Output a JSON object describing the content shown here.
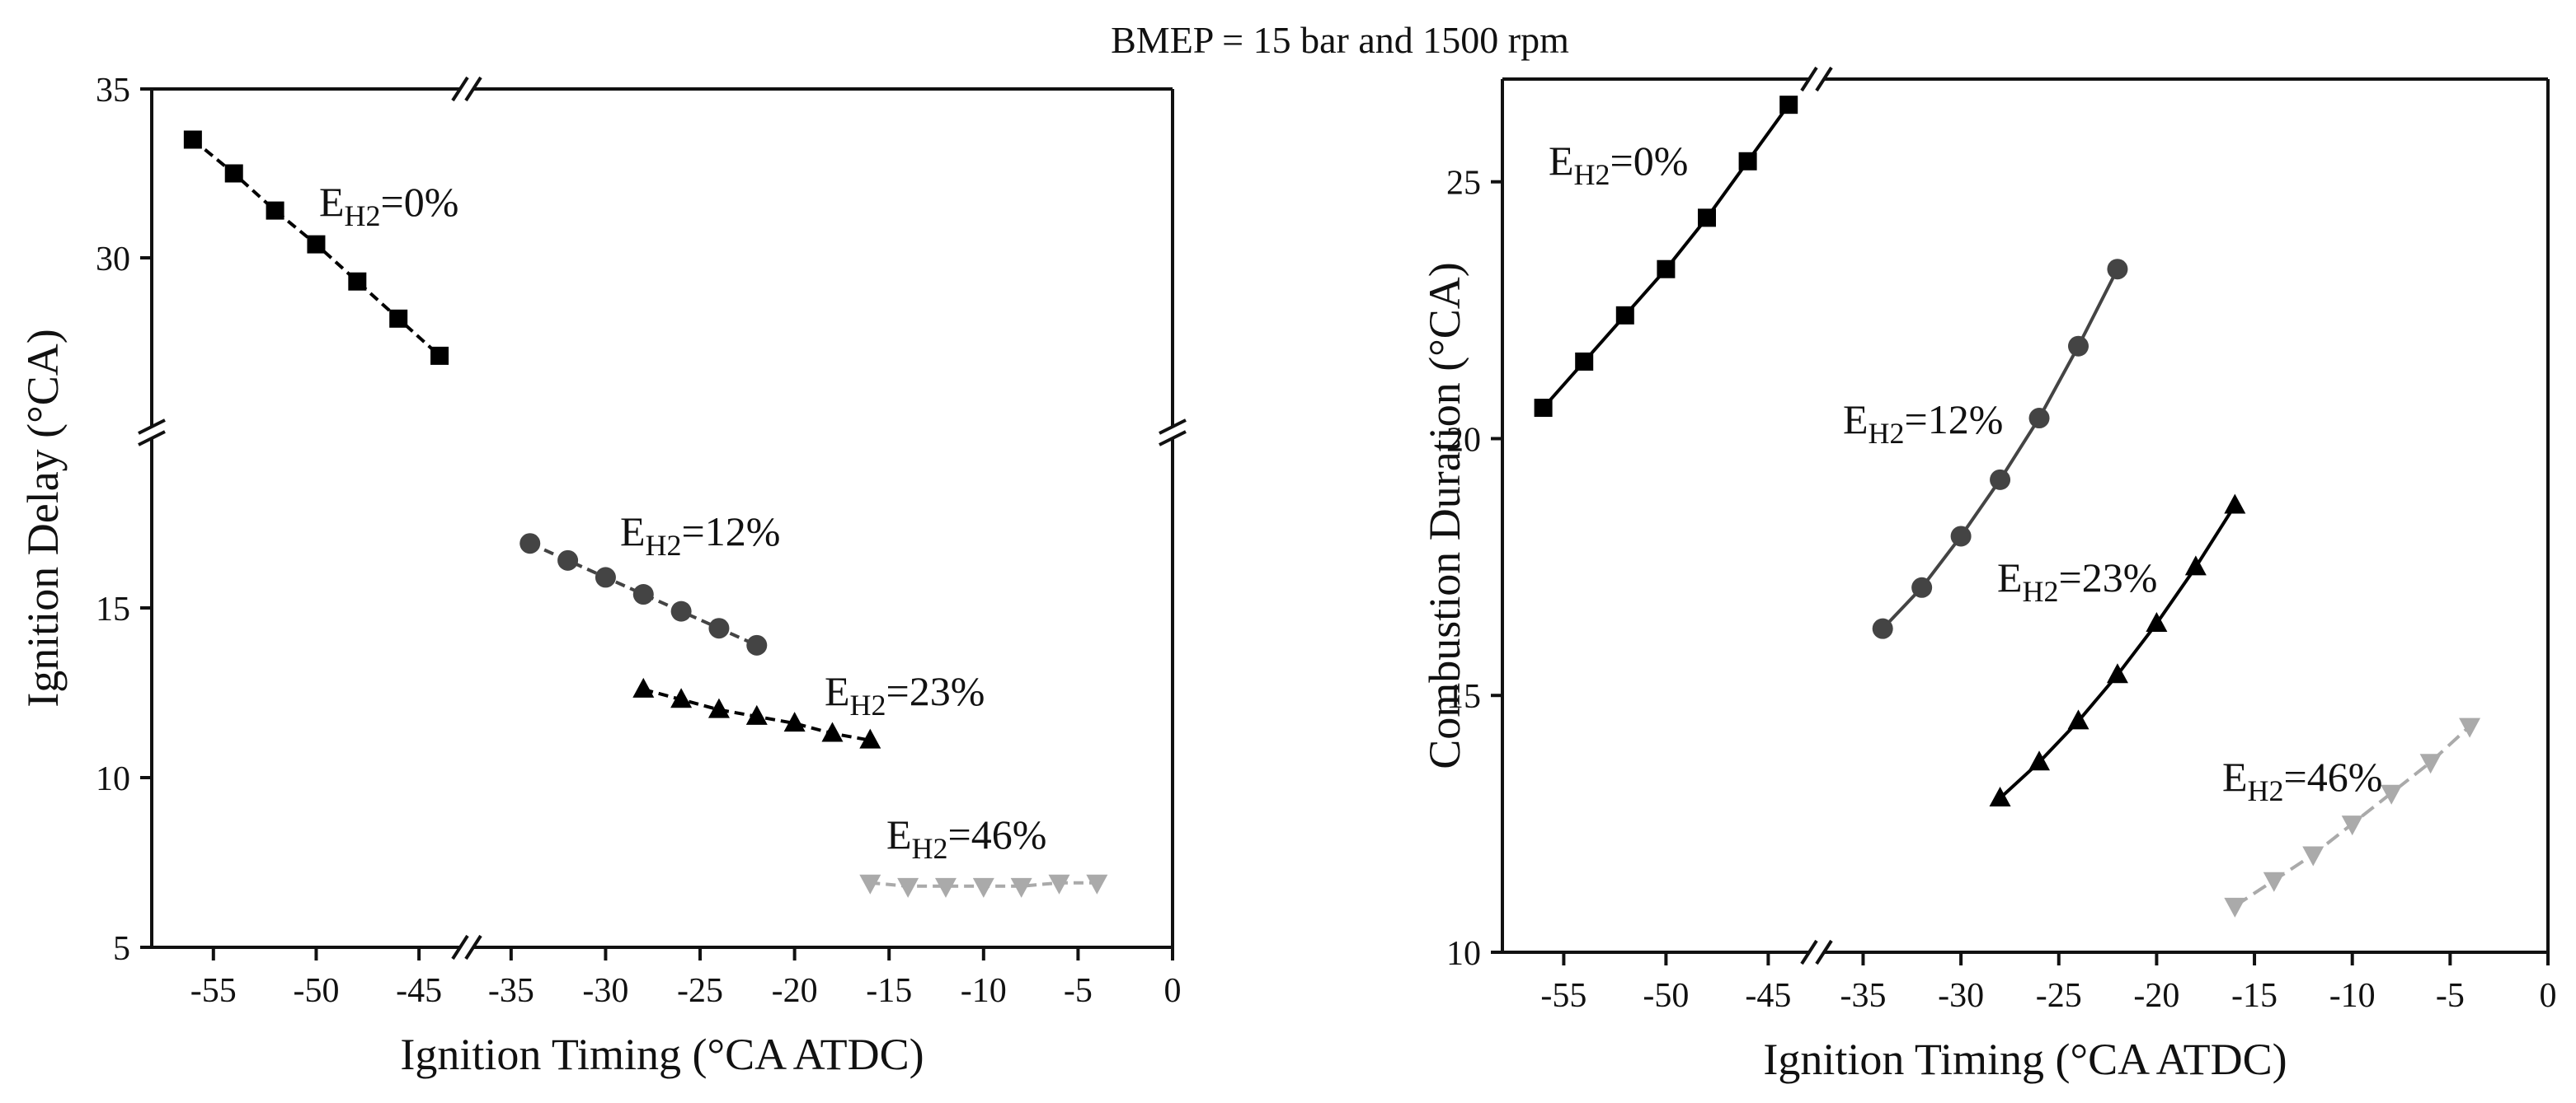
{
  "figure_title": "BMEP = 15 bar and 1500 rpm",
  "chart_data": [
    {
      "type": "line",
      "panel": "left",
      "title": "",
      "xlabel": "Ignition Timing (°CA ATDC)",
      "ylabel": "Ignition Delay (°CA)",
      "xlim": [
        -58,
        0
      ],
      "x_break": [
        -43,
        -37
      ],
      "ylim": [
        5,
        35
      ],
      "y_break": [
        20,
        25
      ],
      "xticks": [
        -55,
        -50,
        -45,
        -35,
        -30,
        -25,
        -20,
        -15,
        -10,
        -5,
        0
      ],
      "xtick_labels": [
        "-55",
        "-50",
        "-45",
        "-35",
        "-30",
        "-25",
        "-20",
        "-15",
        "-10",
        "-5",
        "0"
      ],
      "yticks": [
        5,
        10,
        15,
        30,
        35
      ],
      "ytick_labels": [
        "5",
        "10",
        "15",
        "30",
        "35"
      ],
      "series": [
        {
          "name": "EH2=0%",
          "label_main": "E",
          "label_sub": "H2",
          "label_rest": "=0%",
          "marker": "square",
          "color": "#000000",
          "dash": "12,7",
          "x": [
            -56,
            -54,
            -52,
            -50,
            -48,
            -46,
            -44
          ],
          "y": [
            33.5,
            32.5,
            31.4,
            30.4,
            29.3,
            28.2,
            27.1
          ]
        },
        {
          "name": "EH2=12%",
          "label_main": "E",
          "label_sub": "H2",
          "label_rest": "=12%",
          "marker": "circle",
          "color": "#444444",
          "dash": "12,7",
          "x": [
            -34,
            -32,
            -30,
            -28,
            -26,
            -24,
            -22
          ],
          "y": [
            16.9,
            16.4,
            15.9,
            15.4,
            14.9,
            14.4,
            13.9
          ]
        },
        {
          "name": "EH2=23%",
          "label_main": "E",
          "label_sub": "H2",
          "label_rest": "=23%",
          "marker": "triangle-up",
          "color": "#000000",
          "dash": "12,7",
          "x": [
            -28,
            -26,
            -24,
            -22,
            -20,
            -18,
            -16
          ],
          "y": [
            12.6,
            12.3,
            12.0,
            11.8,
            11.6,
            11.3,
            11.1
          ]
        },
        {
          "name": "EH2=46%",
          "label_main": "E",
          "label_sub": "H2",
          "label_rest": "=46%",
          "marker": "triangle-down",
          "color": "#aaaaaa",
          "dash": "12,7",
          "x": [
            -16,
            -14,
            -12,
            -10,
            -8,
            -6,
            -4
          ],
          "y": [
            6.9,
            6.8,
            6.8,
            6.8,
            6.8,
            6.9,
            6.9
          ]
        }
      ]
    },
    {
      "type": "line",
      "panel": "right",
      "title": "",
      "xlabel": "Ignition Timing (°CA ATDC)",
      "ylabel": "Combustion Duration  (°CA)",
      "xlim": [
        -58,
        0
      ],
      "x_break": [
        -43,
        -37
      ],
      "ylim": [
        10,
        27
      ],
      "xticks": [
        -55,
        -50,
        -45,
        -35,
        -30,
        -25,
        -20,
        -15,
        -10,
        -5,
        0
      ],
      "xtick_labels": [
        "-55",
        "-50",
        "-45",
        "-35",
        "-30",
        "-25",
        "-20",
        "-15",
        "-10",
        "-5",
        "0"
      ],
      "yticks": [
        10,
        15,
        20,
        25
      ],
      "ytick_labels": [
        "10",
        "15",
        "20",
        "25"
      ],
      "series": [
        {
          "name": "EH2=0%",
          "label_main": "E",
          "label_sub": "H2",
          "label_rest": "=0%",
          "marker": "square",
          "color": "#000000",
          "dash": "",
          "x": [
            -56,
            -54,
            -52,
            -50,
            -48,
            -46,
            -44
          ],
          "y": [
            20.6,
            21.5,
            22.4,
            23.3,
            24.3,
            25.4,
            26.5
          ]
        },
        {
          "name": "EH2=12%",
          "label_main": "E",
          "label_sub": "H2",
          "label_rest": "=12%",
          "marker": "circle",
          "color": "#444444",
          "dash": "",
          "x": [
            -34,
            -32,
            -30,
            -28,
            -26,
            -24,
            -22
          ],
          "y": [
            16.3,
            17.1,
            18.1,
            19.2,
            20.4,
            21.8,
            23.3
          ]
        },
        {
          "name": "EH2=23%",
          "label_main": "E",
          "label_sub": "H2",
          "label_rest": "=23%",
          "marker": "triangle-up",
          "color": "#000000",
          "dash": "",
          "x": [
            -28,
            -26,
            -24,
            -22,
            -20,
            -18,
            -16
          ],
          "y": [
            13.0,
            13.7,
            14.5,
            15.4,
            16.4,
            17.5,
            18.7
          ]
        },
        {
          "name": "EH2=46%",
          "label_main": "E",
          "label_sub": "H2",
          "label_rest": "=46%",
          "marker": "triangle-down",
          "color": "#aaaaaa",
          "dash": "18,9",
          "x": [
            -16,
            -14,
            -12,
            -10,
            -8,
            -6,
            -4
          ],
          "y": [
            10.9,
            11.4,
            11.9,
            12.5,
            13.1,
            13.7,
            14.4
          ]
        }
      ]
    }
  ]
}
